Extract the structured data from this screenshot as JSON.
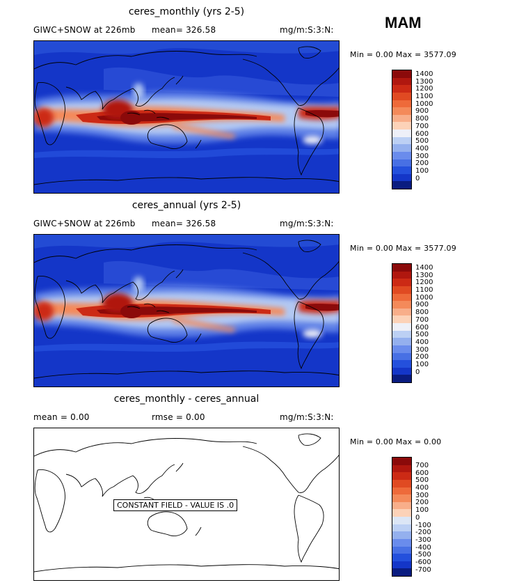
{
  "season": "MAM",
  "panels": [
    {
      "title": "ceres_monthly (yrs 2-5)",
      "variable": "GIWC+SNOW at 226mb",
      "mean_text": "mean= 326.58",
      "units": "mg/m:S:3:N:",
      "minmax": "Min =    0.00  Max = 3577.09",
      "colorbar_labels": [
        "1400",
        "1300",
        "1200",
        "1100",
        "1000",
        "900",
        "800",
        "700",
        "600",
        "500",
        "400",
        "300",
        "200",
        "100",
        "0"
      ],
      "colors": [
        "#8b0a0a",
        "#b0170f",
        "#cc2a15",
        "#e04a22",
        "#ee6a3a",
        "#f48a5a",
        "#f8ae8a",
        "#fcd2b8",
        "#eef0f8",
        "#bcd0f4",
        "#94b0ee",
        "#6a8cec",
        "#4870e4",
        "#2450dc",
        "#1436c8",
        "#0a1c80"
      ]
    },
    {
      "title": "ceres_annual (yrs 2-5)",
      "variable": "GIWC+SNOW at 226mb",
      "mean_text": "mean= 326.58",
      "units": "mg/m:S:3:N:",
      "minmax": "Min =    0.00  Max = 3577.09",
      "colorbar_labels": [
        "1400",
        "1300",
        "1200",
        "1100",
        "1000",
        "900",
        "800",
        "700",
        "600",
        "500",
        "400",
        "300",
        "200",
        "100",
        "0"
      ],
      "colors": [
        "#8b0a0a",
        "#b0170f",
        "#cc2a15",
        "#e04a22",
        "#ee6a3a",
        "#f48a5a",
        "#f8ae8a",
        "#fcd2b8",
        "#eef0f8",
        "#bcd0f4",
        "#94b0ee",
        "#6a8cec",
        "#4870e4",
        "#2450dc",
        "#1436c8",
        "#0a1c80"
      ]
    },
    {
      "title": "ceres_monthly - ceres_annual",
      "mean_text": "mean =     0.00",
      "rmse_text": "rmse =     0.00",
      "units": "mg/m:S:3:N:",
      "minmax": "Min =    0.00  Max =    0.00",
      "constant_label": "CONSTANT FIELD - VALUE IS .0",
      "colorbar_labels": [
        "700",
        "600",
        "500",
        "400",
        "300",
        "200",
        "100",
        "0",
        "-100",
        "-200",
        "-300",
        "-400",
        "-500",
        "-600",
        "-700"
      ],
      "colors": [
        "#8b0a0a",
        "#b0170f",
        "#cc2a15",
        "#e04a22",
        "#ee6a3a",
        "#f48a5a",
        "#f8ae8a",
        "#fcd2b8",
        "#dce6f6",
        "#bcd0f4",
        "#94b0ee",
        "#6a8cec",
        "#4870e4",
        "#2450dc",
        "#1436c8",
        "#0a1c80"
      ]
    }
  ]
}
